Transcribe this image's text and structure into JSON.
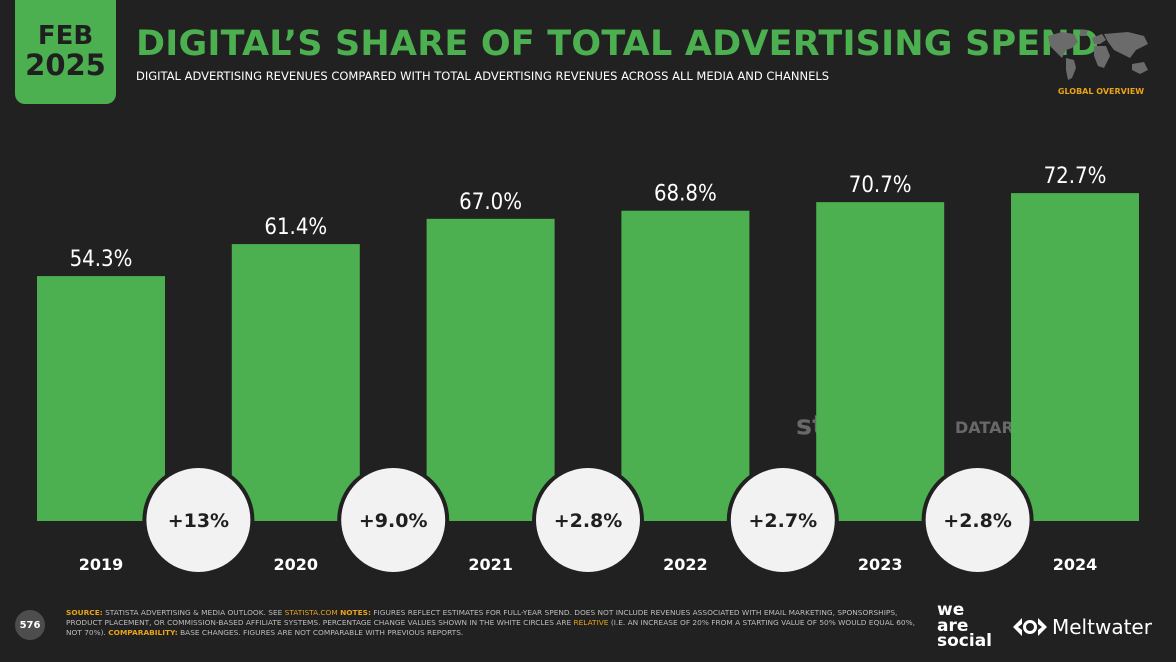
{
  "header": {
    "month": "FEB",
    "year": "2025",
    "title": "DIGITAL’S SHARE OF TOTAL ADVERTISING SPEND",
    "subtitle": "DIGITAL ADVERTISING REVENUES COMPARED WITH TOTAL ADVERTISING REVENUES ACROSS ALL MEDIA AND CHANNELS",
    "section_label": "GLOBAL OVERVIEW"
  },
  "colors": {
    "accent": "#4caf50",
    "background": "#212121",
    "highlight": "#e8a317"
  },
  "chart_data": {
    "type": "bar",
    "categories": [
      "2019",
      "2020",
      "2021",
      "2022",
      "2023",
      "2024"
    ],
    "values": [
      54.3,
      61.4,
      67.0,
      68.8,
      70.7,
      72.7
    ],
    "value_labels": [
      "54.3%",
      "61.4%",
      "67.0%",
      "68.8%",
      "70.7%",
      "72.7%"
    ],
    "changes": [
      "+13%",
      "+9.0%",
      "+2.8%",
      "+2.7%",
      "+2.8%"
    ],
    "ylim": [
      0,
      100
    ],
    "grid": false,
    "legend": "none"
  },
  "watermarks": {
    "statista": "statista",
    "datareportal": "DATAREPORTAL"
  },
  "footer": {
    "page_number": "576",
    "source_label": "SOURCE:",
    "source_text": "STATISTA ADVERTISING & MEDIA OUTLOOK. SEE",
    "source_link": "STATISTA.COM",
    "notes_label": "NOTES:",
    "notes_text_1": "FIGURES REFLECT ESTIMATES FOR FULL-YEAR SPEND. DOES NOT INCLUDE REVENUES ASSOCIATED WITH EMAIL MARKETING, SPONSORSHIPS, PRODUCT PLACEMENT, OR COMMISSION-BASED AFFILIATE SYSTEMS. PERCENTAGE CHANGE VALUES SHOWN IN THE WHITE CIRCLES ARE",
    "notes_relative": "RELATIVE",
    "notes_text_2": "(I.E. AN INCREASE OF 20% FROM A STARTING VALUE OF 50% WOULD EQUAL 60%, NOT 70%).",
    "comparability_label": "COMPARABILITY:",
    "comparability_text": "BASE CHANGES. FIGURES ARE NOT COMPARABLE WITH PREVIOUS REPORTS.",
    "brand_1_line_1": "we",
    "brand_1_line_2": "are",
    "brand_1_line_3": "social",
    "brand_2": "Meltwater"
  }
}
